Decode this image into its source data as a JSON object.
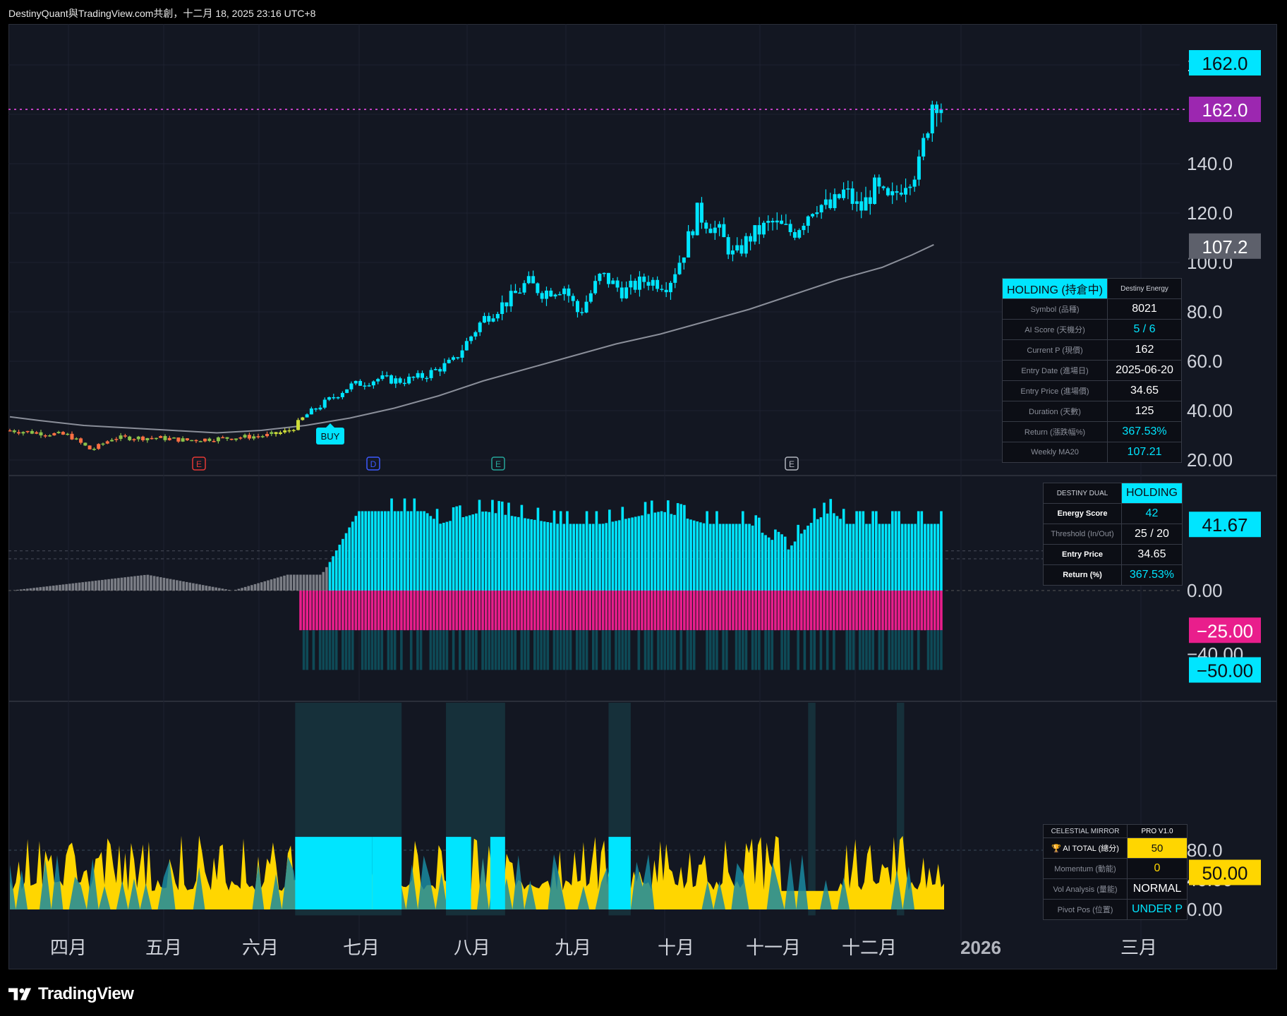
{
  "header": {
    "attribution": "DestinyQuant與TradingView.com共創，十二月 18, 2025 23:16 UTC+8"
  },
  "footer": {
    "brand": "TradingView",
    "logo_icon": "tradingview-logo-icon"
  },
  "colors": {
    "bg": "#131722",
    "cyan": "#00e5ff",
    "magenta": "#e91e8c",
    "yellow": "#ffd600",
    "purple": "#9c27b0",
    "gray": "#6b6e76",
    "teal": "#26a69a",
    "darkcyan": "#0e4a57"
  },
  "x_axis": {
    "labels": [
      "四月",
      "五月",
      "六月",
      "七月",
      "八月",
      "九月",
      "十月",
      "十一月",
      "十二月",
      "2026",
      "三月"
    ]
  },
  "chart_data": [
    {
      "type": "candlestick",
      "panel": "price",
      "ylim": [
        10,
        185
      ],
      "y_ticks": [
        "180.0",
        "140.0",
        "120.0",
        "100.0",
        "80.0",
        "60.0",
        "40.00",
        "20.00"
      ],
      "price_labels": {
        "last": "162.0",
        "close": "162.0",
        "ma": "107.2"
      },
      "series": [
        {
          "name": "Weekly MA20",
          "type": "line",
          "points": [
            [
              0,
              37.5
            ],
            [
              20,
              36
            ],
            [
              50,
              34
            ],
            [
              80,
              33
            ],
            [
              110,
              32
            ],
            [
              140,
              31
            ],
            [
              170,
              32
            ],
            [
              200,
              34
            ],
            [
              230,
              37
            ],
            [
              260,
              41
            ],
            [
              290,
              46
            ],
            [
              320,
              52
            ],
            [
              350,
              57
            ],
            [
              380,
              62
            ],
            [
              410,
              67
            ],
            [
              440,
              71
            ],
            [
              470,
              76
            ],
            [
              500,
              81
            ],
            [
              530,
              87
            ],
            [
              560,
              93
            ],
            [
              590,
              98
            ],
            [
              610,
              103
            ],
            [
              625,
              107.2
            ]
          ]
        },
        {
          "name": "candles",
          "anchors": [
            [
              0,
              32
            ],
            [
              40,
              30
            ],
            [
              55,
              24
            ],
            [
              70,
              29
            ],
            [
              100,
              29
            ],
            [
              120,
              28
            ],
            [
              150,
              29
            ],
            [
              175,
              30
            ],
            [
              190,
              32
            ],
            [
              200,
              38
            ],
            [
              215,
              44
            ],
            [
              230,
              50
            ],
            [
              250,
              53
            ],
            [
              265,
              52
            ],
            [
              280,
              54
            ],
            [
              300,
              60
            ],
            [
              320,
              77
            ],
            [
              340,
              86
            ],
            [
              350,
              92
            ],
            [
              360,
              88
            ],
            [
              375,
              90
            ],
            [
              385,
              79
            ],
            [
              400,
              95
            ],
            [
              415,
              88
            ],
            [
              430,
              93
            ],
            [
              445,
              91
            ],
            [
              455,
              103
            ],
            [
              465,
              120
            ],
            [
              480,
              112
            ],
            [
              490,
              102
            ],
            [
              500,
              110
            ],
            [
              515,
              116
            ],
            [
              530,
              112
            ],
            [
              545,
              124
            ],
            [
              555,
              122
            ],
            [
              565,
              129
            ],
            [
              575,
              121
            ],
            [
              585,
              130
            ],
            [
              595,
              124
            ],
            [
              605,
              133
            ],
            [
              615,
              139
            ],
            [
              625,
              168
            ],
            [
              632,
              162
            ]
          ]
        }
      ],
      "annotations": [
        "BUY",
        "E",
        "D",
        "E",
        "E"
      ],
      "panel_table": {
        "header": [
          "HOLDING (持倉中)",
          "Destiny Energy"
        ],
        "rows": [
          [
            "Symbol (品種)",
            "8021"
          ],
          [
            "AI Score (天機分)",
            "5 / 6"
          ],
          [
            "Current P (現價)",
            "162"
          ],
          [
            "Entry Date (進場日)",
            "2025-06-20"
          ],
          [
            "Entry Price (進場價)",
            "34.65"
          ],
          [
            "Duration (天數)",
            "125"
          ],
          [
            "Return (漲跌幅%)",
            "367.53%"
          ],
          [
            "Weekly MA20",
            "107.21"
          ]
        ]
      }
    },
    {
      "type": "bar",
      "panel": "energy",
      "ylim": [
        -60,
        60
      ],
      "y_ticks": [
        "0.00",
        "−40.00"
      ],
      "price_labels": {
        "value": "41.67",
        "threshold_low": "−25.00",
        "floor": "−50.00"
      },
      "levels": [
        25,
        20
      ],
      "bar_tops": [
        [
          0,
          0
        ],
        [
          92,
          10
        ],
        [
          150,
          0
        ],
        [
          187,
          10
        ],
        [
          210,
          10
        ],
        [
          215,
          17
        ],
        [
          235,
          50
        ],
        [
          280,
          50
        ],
        [
          290,
          42
        ],
        [
          320,
          50
        ],
        [
          370,
          42
        ],
        [
          400,
          42
        ],
        [
          440,
          50
        ],
        [
          470,
          42
        ],
        [
          500,
          42
        ],
        [
          525,
          25
        ],
        [
          540,
          42
        ],
        [
          555,
          50
        ],
        [
          565,
          42
        ],
        [
          585,
          42
        ],
        [
          600,
          42
        ],
        [
          630,
          42
        ]
      ],
      "negative_bars": [
        -25,
        -50
      ],
      "panel_table": {
        "header": [
          "DESTINY DUAL",
          "HOLDING"
        ],
        "rows": [
          [
            "Energy Score",
            "42"
          ],
          [
            "Threshold (In/Out)",
            "25 / 20"
          ],
          [
            "Entry Price",
            "34.65"
          ],
          [
            "Return (%)",
            "367.53%"
          ]
        ]
      }
    },
    {
      "type": "area",
      "panel": "celestial",
      "ylim": [
        -5,
        112
      ],
      "y_ticks": [
        "80.0",
        "40.00",
        "0.00"
      ],
      "price_labels": {
        "value": "50.00"
      },
      "levels": [
        80
      ],
      "series": [
        {
          "name": "cyan",
          "blocks": [
            [
              193,
              245
            ],
            [
              245,
              265
            ],
            [
              295,
              312
            ],
            [
              325,
              335
            ],
            [
              405,
              420
            ]
          ]
        },
        {
          "name": "yellow",
          "ymax": 100
        }
      ],
      "panel_table": {
        "header": [
          "CELESTIAL MIRROR",
          "PRO V1.0"
        ],
        "rows": [
          [
            "🏆 AI TOTAL (總分)",
            "50"
          ],
          [
            "Momentum (動能)",
            "0"
          ],
          [
            "Vol Analysis (量能)",
            "NORMAL"
          ],
          [
            "Pivot Pos (位置)",
            "UNDER P"
          ]
        ]
      }
    }
  ]
}
